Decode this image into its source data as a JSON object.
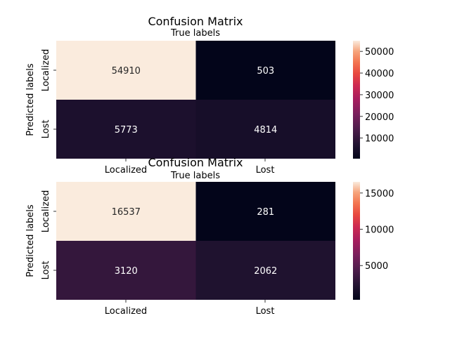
{
  "chart_data": [
    {
      "type": "heatmap",
      "title": "Confusion Matrix",
      "xlabel": "True labels",
      "ylabel": "Predicted labels",
      "x_categories": [
        "Localized",
        "Lost"
      ],
      "y_categories": [
        "Localized",
        "Lost"
      ],
      "values": [
        [
          54910,
          503
        ],
        [
          5773,
          4814
        ]
      ],
      "colorbar": {
        "range": [
          503,
          54910
        ],
        "ticks": [
          10000,
          20000,
          30000,
          40000,
          50000
        ]
      },
      "colormap": "rocket"
    },
    {
      "type": "heatmap",
      "title": "Confusion Matrix",
      "xlabel": "True labels",
      "ylabel": "Predicted labels",
      "x_categories": [
        "Localized",
        "Lost"
      ],
      "y_categories": [
        "Localized",
        "Lost"
      ],
      "values": [
        [
          16537,
          281
        ],
        [
          3120,
          2062
        ]
      ],
      "colorbar": {
        "range": [
          281,
          16537
        ],
        "ticks": [
          5000,
          10000,
          15000
        ]
      },
      "colormap": "rocket"
    }
  ]
}
